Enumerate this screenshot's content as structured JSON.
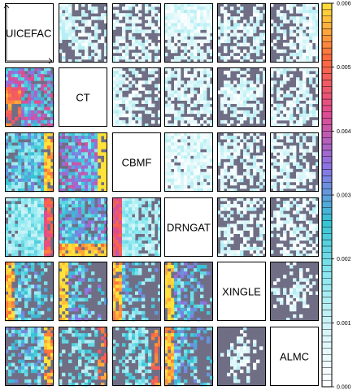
{
  "chart_data": {
    "type": "heatmap",
    "layout": "pairwise-matrix",
    "variables": [
      "UICEFAC",
      "CT",
      "CBMF",
      "DRNGAT",
      "XINGLE",
      "ALMC"
    ],
    "value_range": [
      0,
      0.006
    ],
    "colorbar": {
      "ticks": [
        "0.000",
        "0.001",
        "0.002",
        "0.003",
        "0.004",
        "0.005",
        "0.006"
      ],
      "position": "right",
      "colors": [
        "#ffffff",
        "#d8f6f8",
        "#8fe8f0",
        "#34c4d4",
        "#8a74e6",
        "#e24a90",
        "#ff6a3c",
        "#ffe23a"
      ]
    },
    "no_data_color": "#6f6e85",
    "cells": [
      {
        "row": 1,
        "col": 2,
        "coverage": 0.55,
        "intensity": 0.08,
        "pattern": "lower-left"
      },
      {
        "row": 1,
        "col": 3,
        "coverage": 0.55,
        "intensity": 0.07,
        "pattern": "scattered"
      },
      {
        "row": 1,
        "col": 4,
        "coverage": 0.8,
        "intensity": 0.05,
        "pattern": "bottom"
      },
      {
        "row": 1,
        "col": 5,
        "coverage": 0.5,
        "intensity": 0.07,
        "pattern": "top-bottom"
      },
      {
        "row": 1,
        "col": 6,
        "coverage": 0.6,
        "intensity": 0.06,
        "pattern": "right"
      },
      {
        "row": 2,
        "col": 1,
        "coverage": 0.8,
        "intensity": 0.75,
        "pattern": "hot-lower-left"
      },
      {
        "row": 2,
        "col": 3,
        "coverage": 0.55,
        "intensity": 0.08,
        "pattern": "left"
      },
      {
        "row": 2,
        "col": 4,
        "coverage": 0.65,
        "intensity": 0.06,
        "pattern": "scattered"
      },
      {
        "row": 2,
        "col": 5,
        "coverage": 0.5,
        "intensity": 0.08,
        "pattern": "center"
      },
      {
        "row": 2,
        "col": 6,
        "coverage": 0.6,
        "intensity": 0.07,
        "pattern": "scattered"
      },
      {
        "row": 3,
        "col": 1,
        "coverage": 0.8,
        "intensity": 0.55,
        "pattern": "hot-right"
      },
      {
        "row": 3,
        "col": 2,
        "coverage": 0.85,
        "intensity": 0.7,
        "pattern": "hot-right"
      },
      {
        "row": 3,
        "col": 4,
        "coverage": 0.92,
        "intensity": 0.05,
        "pattern": "uniform"
      },
      {
        "row": 3,
        "col": 5,
        "coverage": 0.55,
        "intensity": 0.08,
        "pattern": "scattered"
      },
      {
        "row": 3,
        "col": 6,
        "coverage": 0.55,
        "intensity": 0.07,
        "pattern": "scattered"
      },
      {
        "row": 4,
        "col": 1,
        "coverage": 0.88,
        "intensity": 0.4,
        "pattern": "hot-right"
      },
      {
        "row": 4,
        "col": 2,
        "coverage": 0.8,
        "intensity": 0.65,
        "pattern": "hot-bottom"
      },
      {
        "row": 4,
        "col": 3,
        "coverage": 0.82,
        "intensity": 0.35,
        "pattern": "hot-left"
      },
      {
        "row": 4,
        "col": 5,
        "coverage": 0.5,
        "intensity": 0.08,
        "pattern": "scattered"
      },
      {
        "row": 4,
        "col": 6,
        "coverage": 0.5,
        "intensity": 0.07,
        "pattern": "scattered"
      },
      {
        "row": 5,
        "col": 1,
        "coverage": 0.55,
        "intensity": 0.55,
        "pattern": "hot-left"
      },
      {
        "row": 5,
        "col": 2,
        "coverage": 0.45,
        "intensity": 0.6,
        "pattern": "hot-left"
      },
      {
        "row": 5,
        "col": 3,
        "coverage": 0.45,
        "intensity": 0.55,
        "pattern": "hot-left"
      },
      {
        "row": 5,
        "col": 4,
        "coverage": 0.5,
        "intensity": 0.6,
        "pattern": "hot-left"
      },
      {
        "row": 5,
        "col": 6,
        "coverage": 0.25,
        "intensity": 0.08,
        "pattern": "center"
      },
      {
        "row": 6,
        "col": 1,
        "coverage": 0.55,
        "intensity": 0.55,
        "pattern": "hot-right"
      },
      {
        "row": 6,
        "col": 2,
        "coverage": 0.4,
        "intensity": 0.45,
        "pattern": "hot-right"
      },
      {
        "row": 6,
        "col": 3,
        "coverage": 0.45,
        "intensity": 0.45,
        "pattern": "hot-right"
      },
      {
        "row": 6,
        "col": 4,
        "coverage": 0.5,
        "intensity": 0.55,
        "pattern": "hot-left"
      },
      {
        "row": 6,
        "col": 5,
        "coverage": 0.22,
        "intensity": 0.08,
        "pattern": "center"
      }
    ]
  }
}
